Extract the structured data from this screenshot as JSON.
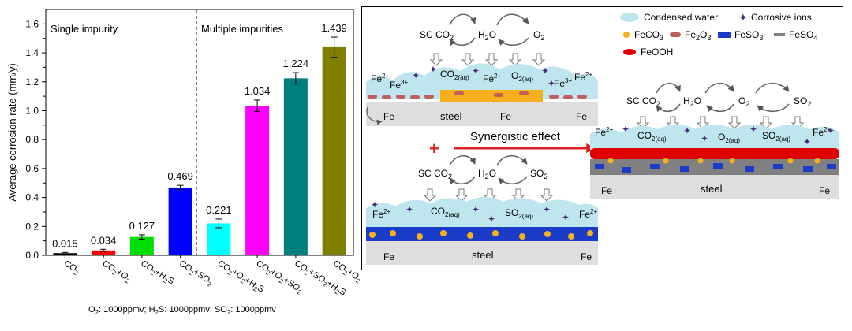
{
  "chart_data": {
    "type": "bar",
    "ylabel": "Average corrosion rate (mm/y)",
    "ylim": [
      0,
      1.7
    ],
    "yticks": [
      "0.0",
      "0.2",
      "0.4",
      "0.6",
      "0.8",
      "1.0",
      "1.2",
      "1.4",
      "1.6"
    ],
    "ytick_values": [
      0,
      0.2,
      0.4,
      0.6,
      0.8,
      1.0,
      1.2,
      1.4,
      1.6
    ],
    "grid": false,
    "region_labels": [
      "Single impurity",
      "Multiple impurities"
    ],
    "categories": [
      "CO2",
      "CO2+O2",
      "CO2+H2S",
      "CO2+SO2",
      "CO2+O2+H2S",
      "CO2+O2+SO2",
      "CO2+SO2+H2S",
      "CO2+O2+SO2+H2S"
    ],
    "category_tokens": [
      [
        [
          "CO",
          ""
        ],
        [
          "2",
          "sub"
        ]
      ],
      [
        [
          "CO",
          ""
        ],
        [
          "2",
          "sub"
        ],
        [
          "+O",
          ""
        ],
        [
          "2",
          "sub"
        ]
      ],
      [
        [
          "CO",
          ""
        ],
        [
          "2",
          "sub"
        ],
        [
          "+H",
          ""
        ],
        [
          "2",
          "sub"
        ],
        [
          "S",
          ""
        ]
      ],
      [
        [
          "CO",
          ""
        ],
        [
          "2",
          "sub"
        ],
        [
          "+SO",
          ""
        ],
        [
          "2",
          "sub"
        ]
      ],
      [
        [
          "CO",
          ""
        ],
        [
          "2",
          "sub"
        ],
        [
          "+O",
          ""
        ],
        [
          "2",
          "sub"
        ],
        [
          "+H",
          ""
        ],
        [
          "2",
          "sub"
        ],
        [
          "S",
          ""
        ]
      ],
      [
        [
          "CO",
          ""
        ],
        [
          "2",
          "sub"
        ],
        [
          "+O",
          ""
        ],
        [
          "2",
          "sub"
        ],
        [
          "+SO",
          ""
        ],
        [
          "2",
          "sub"
        ]
      ],
      [
        [
          "CO",
          ""
        ],
        [
          "2",
          "sub"
        ],
        [
          "+SO",
          ""
        ],
        [
          "2",
          "sub"
        ],
        [
          "+H",
          ""
        ],
        [
          "2",
          "sub"
        ],
        [
          "S",
          ""
        ]
      ],
      [
        [
          "CO",
          ""
        ],
        [
          "2",
          "sub"
        ],
        [
          "+O",
          ""
        ],
        [
          "2",
          "sub"
        ],
        [
          "+SO",
          ""
        ],
        [
          "2",
          "sub"
        ],
        [
          "+H",
          ""
        ],
        [
          "2",
          "sub"
        ],
        [
          "S",
          ""
        ]
      ]
    ],
    "values": [
      0.015,
      0.034,
      0.127,
      0.469,
      0.221,
      1.034,
      1.224,
      1.439
    ],
    "value_labels": [
      "0.015",
      "0.034",
      "0.127",
      "0.469",
      "0.221",
      "1.034",
      "1.224",
      "1.439"
    ],
    "errors": [
      0.005,
      0.008,
      0.015,
      0.015,
      0.03,
      0.04,
      0.04,
      0.07
    ],
    "colors": [
      "#000000",
      "#ff0000",
      "#00dd00",
      "#0000ff",
      "#00ffff",
      "#ff00ff",
      "#007f7f",
      "#7f7f00"
    ],
    "footnote_tokens": [
      [
        "O",
        ""
      ],
      [
        "2",
        "sub"
      ],
      [
        ": 1000ppmv; H",
        ""
      ],
      [
        "2",
        "sub"
      ],
      [
        "S: 1000ppmv; SO",
        ""
      ],
      [
        "2",
        "sub"
      ],
      [
        ": 1000ppmv",
        ""
      ]
    ],
    "footnote": "O2: 1000ppmv; H2S: 1000ppmv; SO2: 1000ppmv"
  },
  "scheme": {
    "legend": {
      "condensed_water": "Condensed water",
      "corrosive_ions": "Corrosive ions",
      "feco3": "FeCO3",
      "fe2o3": "Fe2O3",
      "feso3": "FeSO3",
      "feso4": "FeSO4",
      "feooh": "FeOOH"
    },
    "synergy": "Synergistic effect",
    "plus": "+",
    "panel1": {
      "gases": [
        "SC CO2",
        "H2O",
        "O2"
      ],
      "steel": "steel"
    },
    "panel2": {
      "gases": [
        "SC CO2",
        "H2O",
        "SO2"
      ],
      "steel": "steel"
    },
    "panel3": {
      "gases": [
        "SC CO2",
        "H2O",
        "O2",
        "SO2"
      ],
      "steel": "steel"
    }
  },
  "colors": {
    "water": "#bfe6ee",
    "ion": "#4b2a7a",
    "feco3": "#f5b01c",
    "fe2o3": "#c0605a",
    "feso3": "#1a3cc8",
    "feso4": "#808080",
    "feooh": "#e00000",
    "steel": "#dedede",
    "arrow": "#e02020"
  }
}
